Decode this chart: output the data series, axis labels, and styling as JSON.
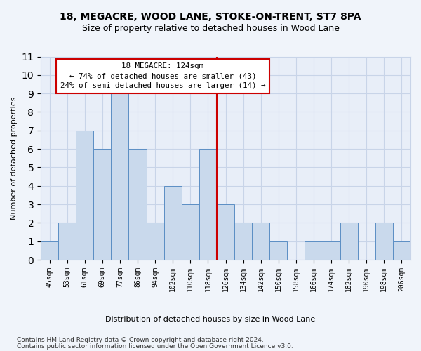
{
  "title": "18, MEGACRE, WOOD LANE, STOKE-ON-TRENT, ST7 8PA",
  "subtitle": "Size of property relative to detached houses in Wood Lane",
  "xlabel": "Distribution of detached houses by size in Wood Lane",
  "ylabel": "Number of detached properties",
  "bar_labels": [
    "45sqm",
    "53sqm",
    "61sqm",
    "69sqm",
    "77sqm",
    "86sqm",
    "94sqm",
    "102sqm",
    "110sqm",
    "118sqm",
    "126sqm",
    "134sqm",
    "142sqm",
    "150sqm",
    "158sqm",
    "166sqm",
    "174sqm",
    "182sqm",
    "190sqm",
    "198sqm",
    "206sqm"
  ],
  "bar_values": [
    1,
    2,
    7,
    6,
    9,
    6,
    2,
    4,
    3,
    6,
    3,
    2,
    2,
    1,
    0,
    1,
    1,
    2,
    0,
    2,
    1
  ],
  "bar_color": "#c9d9ec",
  "bar_edgecolor": "#5b8ec4",
  "property_label": "18 MEGACRE: 124sqm",
  "annotation_line1": "← 74% of detached houses are smaller (43)",
  "annotation_line2": "24% of semi-detached houses are larger (14) →",
  "annotation_box_color": "#ffffff",
  "annotation_box_edgecolor": "#cc0000",
  "vline_color": "#cc0000",
  "vline_x_index": 9.5,
  "ylim": [
    0,
    11
  ],
  "yticks": [
    0,
    1,
    2,
    3,
    4,
    5,
    6,
    7,
    8,
    9,
    10,
    11
  ],
  "grid_color": "#c8d4e8",
  "bg_color": "#e8eef8",
  "fig_bg_color": "#f0f4fa",
  "footer_line1": "Contains HM Land Registry data © Crown copyright and database right 2024.",
  "footer_line2": "Contains public sector information licensed under the Open Government Licence v3.0.",
  "title_fontsize": 10,
  "subtitle_fontsize": 9
}
